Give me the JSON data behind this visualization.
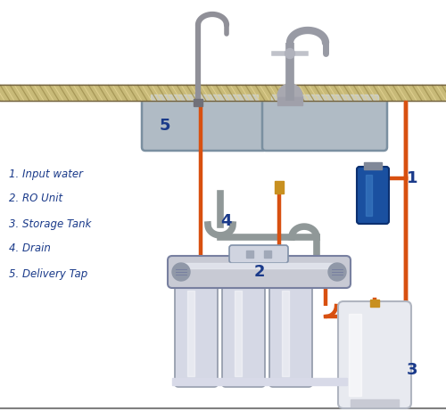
{
  "background_color": "#ffffff",
  "legend": [
    "1. Input water",
    "2. RO Unit",
    "3. Storage Tank",
    "4. Drain",
    "5. Delivery Tap"
  ],
  "label_color": "#1a3a8a",
  "pipe_orange": "#d85010",
  "pipe_orange2": "#e09030",
  "pipe_gray": "#909090",
  "countertop_main": "#c8ba78",
  "countertop_stripe": "#a89858",
  "sink_face": "#b0bbc5",
  "sink_edge": "#7a8fa0",
  "ro_body": "#c8cad4",
  "ro_highlight": "#e5e8f0",
  "filter_body": "#d5d8e5",
  "filter_edge": "#9098a8",
  "tank_body": "#e8eaf0",
  "tank_edge": "#b0b5c0",
  "faucet_gray": "#909098",
  "faucet_light": "#c0c2ca",
  "blue_filter": "#1a50a0",
  "gold_conn": "#c89020",
  "drain_gray": "#909898"
}
